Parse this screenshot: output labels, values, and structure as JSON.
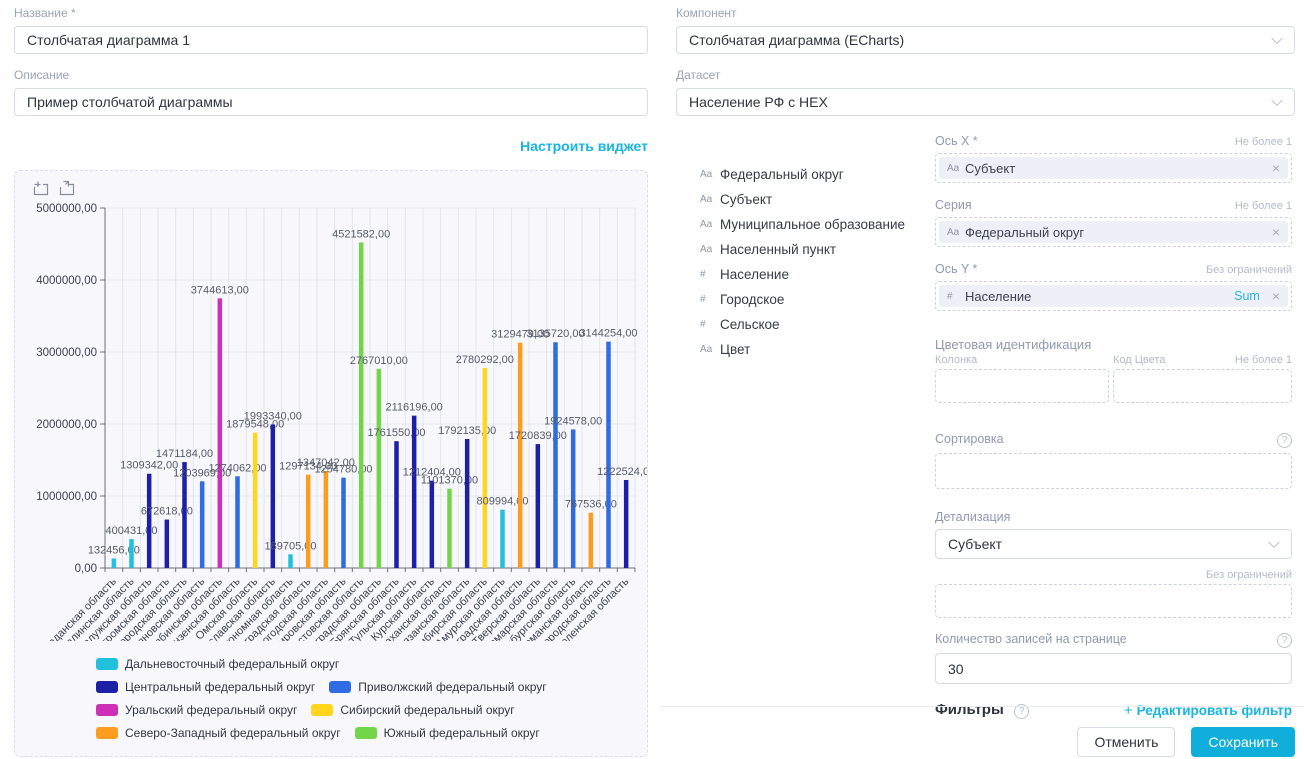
{
  "form": {
    "name_label": "Название *",
    "name_value": "Столбчатая диаграмма 1",
    "description_label": "Описание",
    "description_value": "Пример столбчатой диаграммы",
    "configure_widget_link": "Настроить виджет"
  },
  "right": {
    "component_label": "Компонент",
    "component_value": "Столбчатая диаграмма (ECharts)",
    "dataset_label": "Датасет",
    "dataset_value": "Население РФ с HEX",
    "fields": [
      {
        "type": "Aa",
        "label": "Федеральный округ"
      },
      {
        "type": "Aa",
        "label": "Субъект"
      },
      {
        "type": "Aa",
        "label": "Муниципальное образование"
      },
      {
        "type": "Aa",
        "label": "Населенный пункт"
      },
      {
        "type": "#",
        "label": "Население"
      },
      {
        "type": "#",
        "label": "Городское"
      },
      {
        "type": "#",
        "label": "Сельское"
      },
      {
        "type": "Aa",
        "label": "Цвет"
      }
    ],
    "axis_x": {
      "label": "Ось X *",
      "limit": "Не более 1",
      "chip_type": "Aa",
      "chip_label": "Субъект"
    },
    "series": {
      "label": "Серия",
      "limit": "Не более 1",
      "chip_type": "Aa",
      "chip_label": "Федеральный округ"
    },
    "axis_y": {
      "label": "Ось Y *",
      "limit": "Без ограничений",
      "chip_type": "#",
      "chip_label": "Население",
      "agg": "Sum"
    },
    "color_ident": {
      "label": "Цветовая идентификация",
      "column_label": "Колонка",
      "code_label": "Код Цвета",
      "limit": "Не более 1"
    },
    "sorting": {
      "label": "Сортировка"
    },
    "detail": {
      "label": "Детализация",
      "value": "Субъект"
    },
    "unlimited_label": "Без ограничений",
    "page_size": {
      "label": "Количество записей на странице",
      "value": "30"
    },
    "filters": {
      "label": "Фильтры",
      "edit_link": "Редактировать фильтр"
    },
    "cancel_label": "Отменить",
    "save_label": "Сохранить"
  },
  "chart_toolbox": [
    "area-zoom-icon",
    "restore-icon"
  ],
  "chart_data": {
    "type": "bar",
    "title": "",
    "xlabel": "",
    "ylabel": "",
    "ylim": [
      0,
      5000000
    ],
    "grid": true,
    "legend_position": "bottom",
    "value_label_suffix": ",00",
    "y_ticks": [
      "0,00",
      "1000000,00",
      "2000000,00",
      "3000000,00",
      "4000000,00",
      "5000000,00"
    ],
    "categories": [
      "Магаданская область",
      "Сахалинская область",
      "Калужская область",
      "Костромская область",
      "Белгородская область",
      "Ульяновская область",
      "Челябинская область",
      "Пензенская область",
      "Омская область",
      "Ярославская область",
      "Еврейская автономная область",
      "Калининградская область",
      "Вологодская область",
      "Кировская область",
      "Ростовская область",
      "Волгоградская область",
      "Брянская область",
      "Тульская область",
      "Курская область",
      "Астраханская область",
      "Рязанская область",
      "Новосибирская область",
      "Амурская область",
      "Ленинградская область",
      "Тверская область",
      "Самарская область",
      "Оренбургская область",
      "Мурманская область",
      "Нижегородская область",
      "Смоленская область"
    ],
    "values": [
      132456,
      400431,
      1309342,
      672618,
      1471184,
      1203969,
      3744613,
      1274062,
      1879548,
      1993340,
      189705,
      1297134,
      1347042,
      1254780,
      4521582,
      2767010,
      1761550,
      2116196,
      1212404,
      1101370,
      1792135,
      2780292,
      809994,
      3129479,
      1720839,
      3135720,
      1924578,
      767536,
      3144254,
      1222524
    ],
    "point_series": [
      0,
      0,
      1,
      1,
      1,
      2,
      3,
      2,
      4,
      1,
      0,
      5,
      5,
      2,
      6,
      6,
      1,
      1,
      1,
      6,
      1,
      4,
      0,
      5,
      1,
      2,
      2,
      5,
      2,
      1
    ],
    "series": [
      {
        "name": "Дальневосточный федеральный округ",
        "color": "#21c1dd"
      },
      {
        "name": "Центральный федеральный округ",
        "color": "#1d1fa6"
      },
      {
        "name": "Приволжский федеральный округ",
        "color": "#2f6be3"
      },
      {
        "name": "Уральский федеральный округ",
        "color": "#ce2fb7"
      },
      {
        "name": "Сибирский федеральный округ",
        "color": "#ffd51d"
      },
      {
        "name": "Северо-Западный федеральный округ",
        "color": "#fc9d20"
      },
      {
        "name": "Южный федеральный округ",
        "color": "#72d54a"
      }
    ]
  }
}
